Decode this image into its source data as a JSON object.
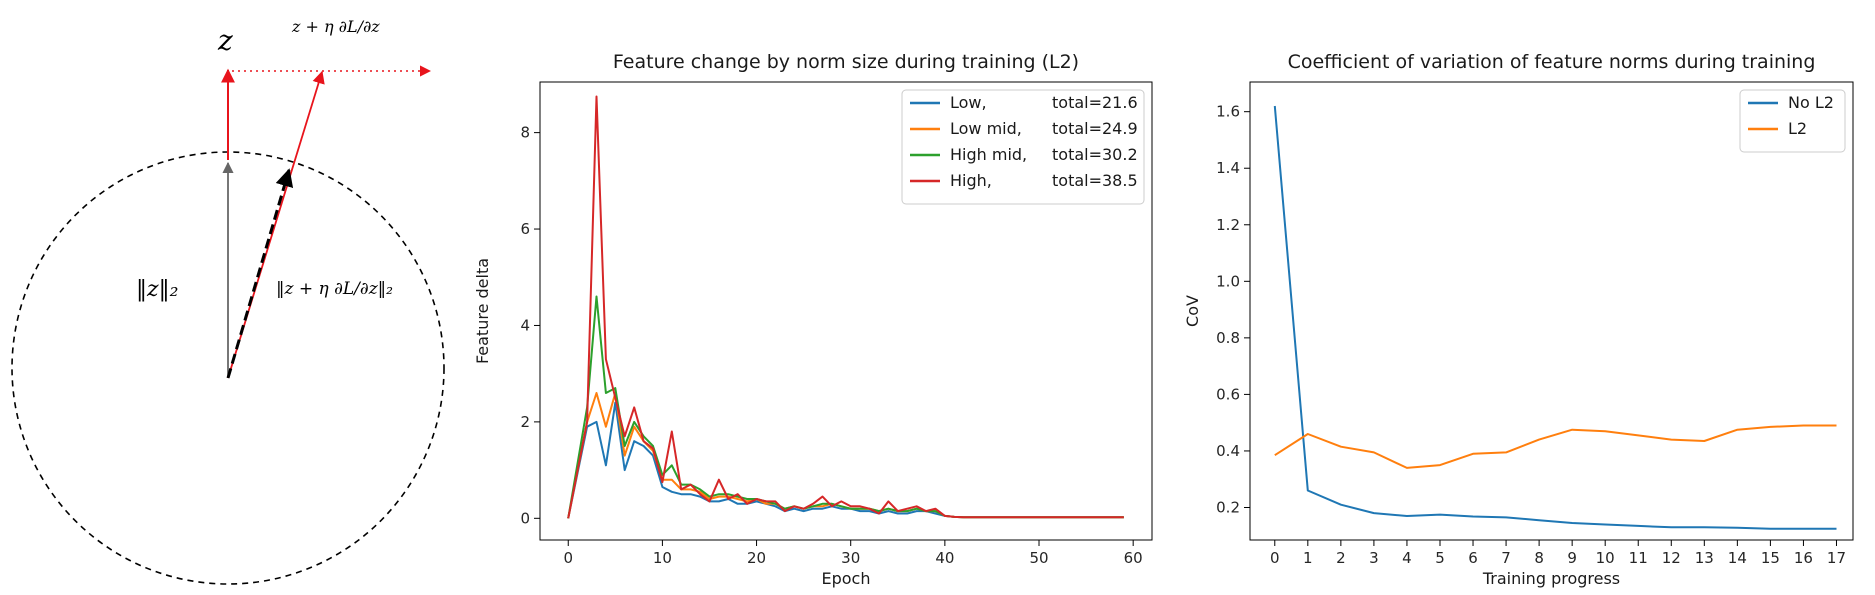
{
  "diagram": {
    "label_z": "z",
    "label_update": "z + η ∂L/∂z",
    "label_norm": "‖z‖₂",
    "label_update_norm": "‖z + η ∂L/∂z‖₂",
    "colors": {
      "arrow_red": "#e8141c",
      "arrow_grey": "#666666",
      "dashed": "#000000"
    }
  },
  "chart_data": [
    {
      "type": "line",
      "title": "Feature change by norm size during training (L2)",
      "xlabel": "Epoch",
      "ylabel": "Feature delta",
      "xlim": [
        -3,
        62
      ],
      "ylim": [
        -0.45,
        9.05
      ],
      "xticks": [
        0,
        10,
        20,
        30,
        40,
        50,
        60
      ],
      "yticks": [
        0,
        2,
        4,
        6,
        8
      ],
      "legend_position": "top-right",
      "series": [
        {
          "name": "Low,",
          "total": "total=21.6",
          "color": "#1f77b4",
          "x": [
            0,
            2,
            3,
            4,
            5,
            6,
            7,
            8,
            9,
            10,
            11,
            12,
            13,
            14,
            15,
            16,
            17,
            18,
            19,
            20,
            21,
            22,
            23,
            24,
            25,
            26,
            27,
            28,
            29,
            30,
            31,
            32,
            33,
            34,
            35,
            36,
            37,
            38,
            39,
            40,
            41,
            42,
            59
          ],
          "values": [
            0,
            1.9,
            2.0,
            1.1,
            2.4,
            1.0,
            1.6,
            1.5,
            1.3,
            0.65,
            0.55,
            0.5,
            0.5,
            0.45,
            0.35,
            0.35,
            0.4,
            0.3,
            0.3,
            0.35,
            0.3,
            0.25,
            0.15,
            0.2,
            0.15,
            0.2,
            0.2,
            0.25,
            0.2,
            0.2,
            0.15,
            0.15,
            0.1,
            0.15,
            0.1,
            0.1,
            0.15,
            0.15,
            0.1,
            0.05,
            0.03,
            0.02,
            0.02
          ]
        },
        {
          "name": "Low mid,",
          "total": "total=24.9",
          "color": "#ff7f0e",
          "x": [
            0,
            2,
            3,
            4,
            5,
            6,
            7,
            8,
            9,
            10,
            11,
            12,
            13,
            14,
            15,
            16,
            17,
            18,
            19,
            20,
            21,
            22,
            23,
            24,
            25,
            26,
            27,
            28,
            29,
            30,
            31,
            32,
            33,
            34,
            35,
            36,
            37,
            38,
            39,
            40,
            41,
            42,
            59
          ],
          "values": [
            0,
            2.0,
            2.6,
            1.9,
            2.6,
            1.3,
            1.9,
            1.6,
            1.4,
            0.8,
            0.8,
            0.6,
            0.6,
            0.55,
            0.4,
            0.45,
            0.45,
            0.4,
            0.35,
            0.4,
            0.3,
            0.3,
            0.2,
            0.25,
            0.2,
            0.25,
            0.25,
            0.3,
            0.25,
            0.2,
            0.2,
            0.2,
            0.15,
            0.2,
            0.15,
            0.15,
            0.2,
            0.15,
            0.15,
            0.05,
            0.03,
            0.02,
            0.02
          ]
        },
        {
          "name": "High mid,",
          "total": "total=30.2",
          "color": "#2ca02c",
          "x": [
            0,
            2,
            3,
            4,
            5,
            6,
            7,
            8,
            9,
            10,
            11,
            12,
            13,
            14,
            15,
            16,
            17,
            18,
            19,
            20,
            21,
            22,
            23,
            24,
            25,
            26,
            27,
            28,
            29,
            30,
            31,
            32,
            33,
            34,
            35,
            36,
            37,
            38,
            39,
            40,
            41,
            42,
            59
          ],
          "values": [
            0,
            2.3,
            4.6,
            2.6,
            2.7,
            1.5,
            2.0,
            1.7,
            1.5,
            0.9,
            1.1,
            0.7,
            0.7,
            0.6,
            0.45,
            0.5,
            0.5,
            0.45,
            0.4,
            0.4,
            0.35,
            0.3,
            0.2,
            0.25,
            0.2,
            0.25,
            0.3,
            0.3,
            0.25,
            0.2,
            0.2,
            0.2,
            0.15,
            0.2,
            0.15,
            0.15,
            0.2,
            0.15,
            0.15,
            0.05,
            0.03,
            0.02,
            0.02
          ]
        },
        {
          "name": "High,",
          "total": "total=38.5",
          "color": "#d62728",
          "x": [
            0,
            2,
            3,
            4,
            5,
            6,
            7,
            8,
            9,
            10,
            11,
            12,
            13,
            14,
            15,
            16,
            17,
            18,
            19,
            20,
            21,
            22,
            23,
            24,
            25,
            26,
            27,
            28,
            29,
            30,
            31,
            32,
            33,
            34,
            35,
            36,
            37,
            38,
            39,
            40,
            41,
            42,
            59
          ],
          "values": [
            0,
            2.0,
            8.75,
            3.3,
            2.5,
            1.7,
            2.3,
            1.6,
            1.45,
            0.75,
            1.8,
            0.6,
            0.7,
            0.5,
            0.35,
            0.8,
            0.4,
            0.5,
            0.3,
            0.4,
            0.35,
            0.35,
            0.15,
            0.25,
            0.2,
            0.3,
            0.45,
            0.25,
            0.35,
            0.25,
            0.25,
            0.2,
            0.1,
            0.35,
            0.15,
            0.2,
            0.25,
            0.15,
            0.2,
            0.05,
            0.03,
            0.02,
            0.02
          ]
        }
      ]
    },
    {
      "type": "line",
      "title": "Coefficient of variation of feature norms during training",
      "xlabel": "Training progress",
      "ylabel": "CoV",
      "xlim": [
        -0.75,
        17.5
      ],
      "ylim": [
        0.085,
        1.705
      ],
      "xticks": [
        0,
        1,
        2,
        3,
        4,
        5,
        6,
        7,
        8,
        9,
        10,
        11,
        12,
        13,
        14,
        15,
        16,
        17
      ],
      "yticks": [
        0.2,
        0.4,
        0.6,
        0.8,
        1.0,
        1.2,
        1.4,
        1.6
      ],
      "ytick_labels": [
        "0.2",
        "0.4",
        "0.6",
        "0.8",
        "1.0",
        "1.2",
        "1.4",
        "1.6"
      ],
      "legend_position": "top-right",
      "series": [
        {
          "name": "No L2",
          "color": "#1f77b4",
          "x": [
            0,
            1,
            2,
            3,
            4,
            5,
            6,
            7,
            8,
            9,
            10,
            11,
            12,
            13,
            14,
            15,
            16,
            17
          ],
          "values": [
            1.62,
            0.26,
            0.21,
            0.18,
            0.17,
            0.175,
            0.168,
            0.165,
            0.155,
            0.145,
            0.14,
            0.135,
            0.13,
            0.13,
            0.128,
            0.125,
            0.125,
            0.125
          ]
        },
        {
          "name": "L2",
          "color": "#ff7f0e",
          "x": [
            0,
            1,
            2,
            3,
            4,
            5,
            6,
            7,
            8,
            9,
            10,
            11,
            12,
            13,
            14,
            15,
            16,
            17
          ],
          "values": [
            0.385,
            0.46,
            0.415,
            0.395,
            0.34,
            0.35,
            0.39,
            0.395,
            0.44,
            0.475,
            0.47,
            0.455,
            0.44,
            0.435,
            0.475,
            0.485,
            0.49,
            0.49
          ]
        }
      ]
    }
  ]
}
